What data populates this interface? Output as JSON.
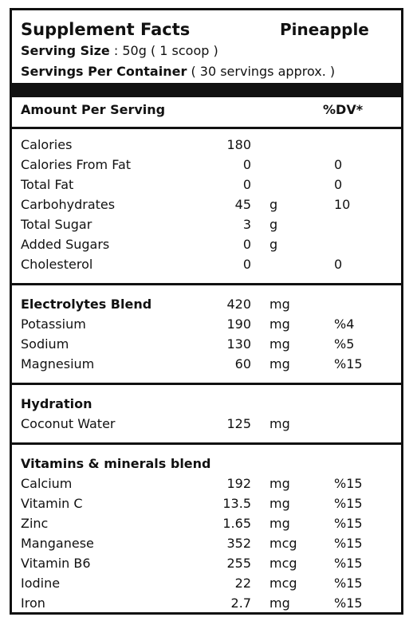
{
  "header": {
    "title": "Supplement Facts",
    "flavor": "Pineapple",
    "serving_size_label": "Serving Size",
    "serving_size_value": ": 50g ( 1 scoop )",
    "servings_label": "Servings Per Container",
    "servings_value": "( 30 servings approx. )"
  },
  "columns": {
    "amount_per_serving": "Amount Per Serving",
    "dv": "%DV*"
  },
  "sections": [
    {
      "rows": [
        {
          "name": "Calories",
          "amount": 180
        },
        {
          "name": "Calories From Fat",
          "amount": 0,
          "dv": 0
        },
        {
          "name": "Total Fat",
          "amount": 0,
          "dv": 0
        },
        {
          "name": "Carbohydrates",
          "amount": 45,
          "unit": "g",
          "dv": 10
        },
        {
          "name": "Total Sugar",
          "amount": 3,
          "unit": "g"
        },
        {
          "name": "Added Sugars",
          "amount": 0,
          "unit": "g"
        },
        {
          "name": "Cholesterol",
          "amount": 0,
          "dv": 0
        }
      ]
    },
    {
      "heading": {
        "name": "Electrolytes Blend",
        "amount": 420,
        "unit": "mg"
      },
      "rows": [
        {
          "name": "Potassium",
          "amount": 190,
          "unit": "mg",
          "dv": "%4"
        },
        {
          "name": "Sodium",
          "amount": 130,
          "unit": "mg",
          "dv": "%5"
        },
        {
          "name": "Magnesium",
          "amount": 60,
          "unit": "mg",
          "dv": "%15"
        }
      ]
    },
    {
      "heading": {
        "name": "Hydration"
      },
      "rows": [
        {
          "name": "Coconut Water",
          "amount": 125,
          "unit": "mg"
        }
      ]
    },
    {
      "heading": {
        "name": "Vitamins & minerals blend"
      },
      "rows": [
        {
          "name": "Calcium",
          "amount": 192,
          "unit": "mg",
          "dv": "%15"
        },
        {
          "name": "Vitamin C",
          "amount": 13.5,
          "unit": "mg",
          "dv": "%15"
        },
        {
          "name": "Zinc",
          "amount": 1.65,
          "unit": "mg",
          "dv": "%15"
        },
        {
          "name": "Manganese",
          "amount": 352,
          "unit": "mcg",
          "dv": "%15"
        },
        {
          "name": "Vitamin B6",
          "amount": 255,
          "unit": "mcg",
          "dv": "%15"
        },
        {
          "name": "Iodine",
          "amount": 22,
          "unit": "mcg",
          "dv": "%15"
        },
        {
          "name": "Iron",
          "amount": 2.7,
          "unit": "mg",
          "dv": "%15"
        }
      ]
    }
  ]
}
